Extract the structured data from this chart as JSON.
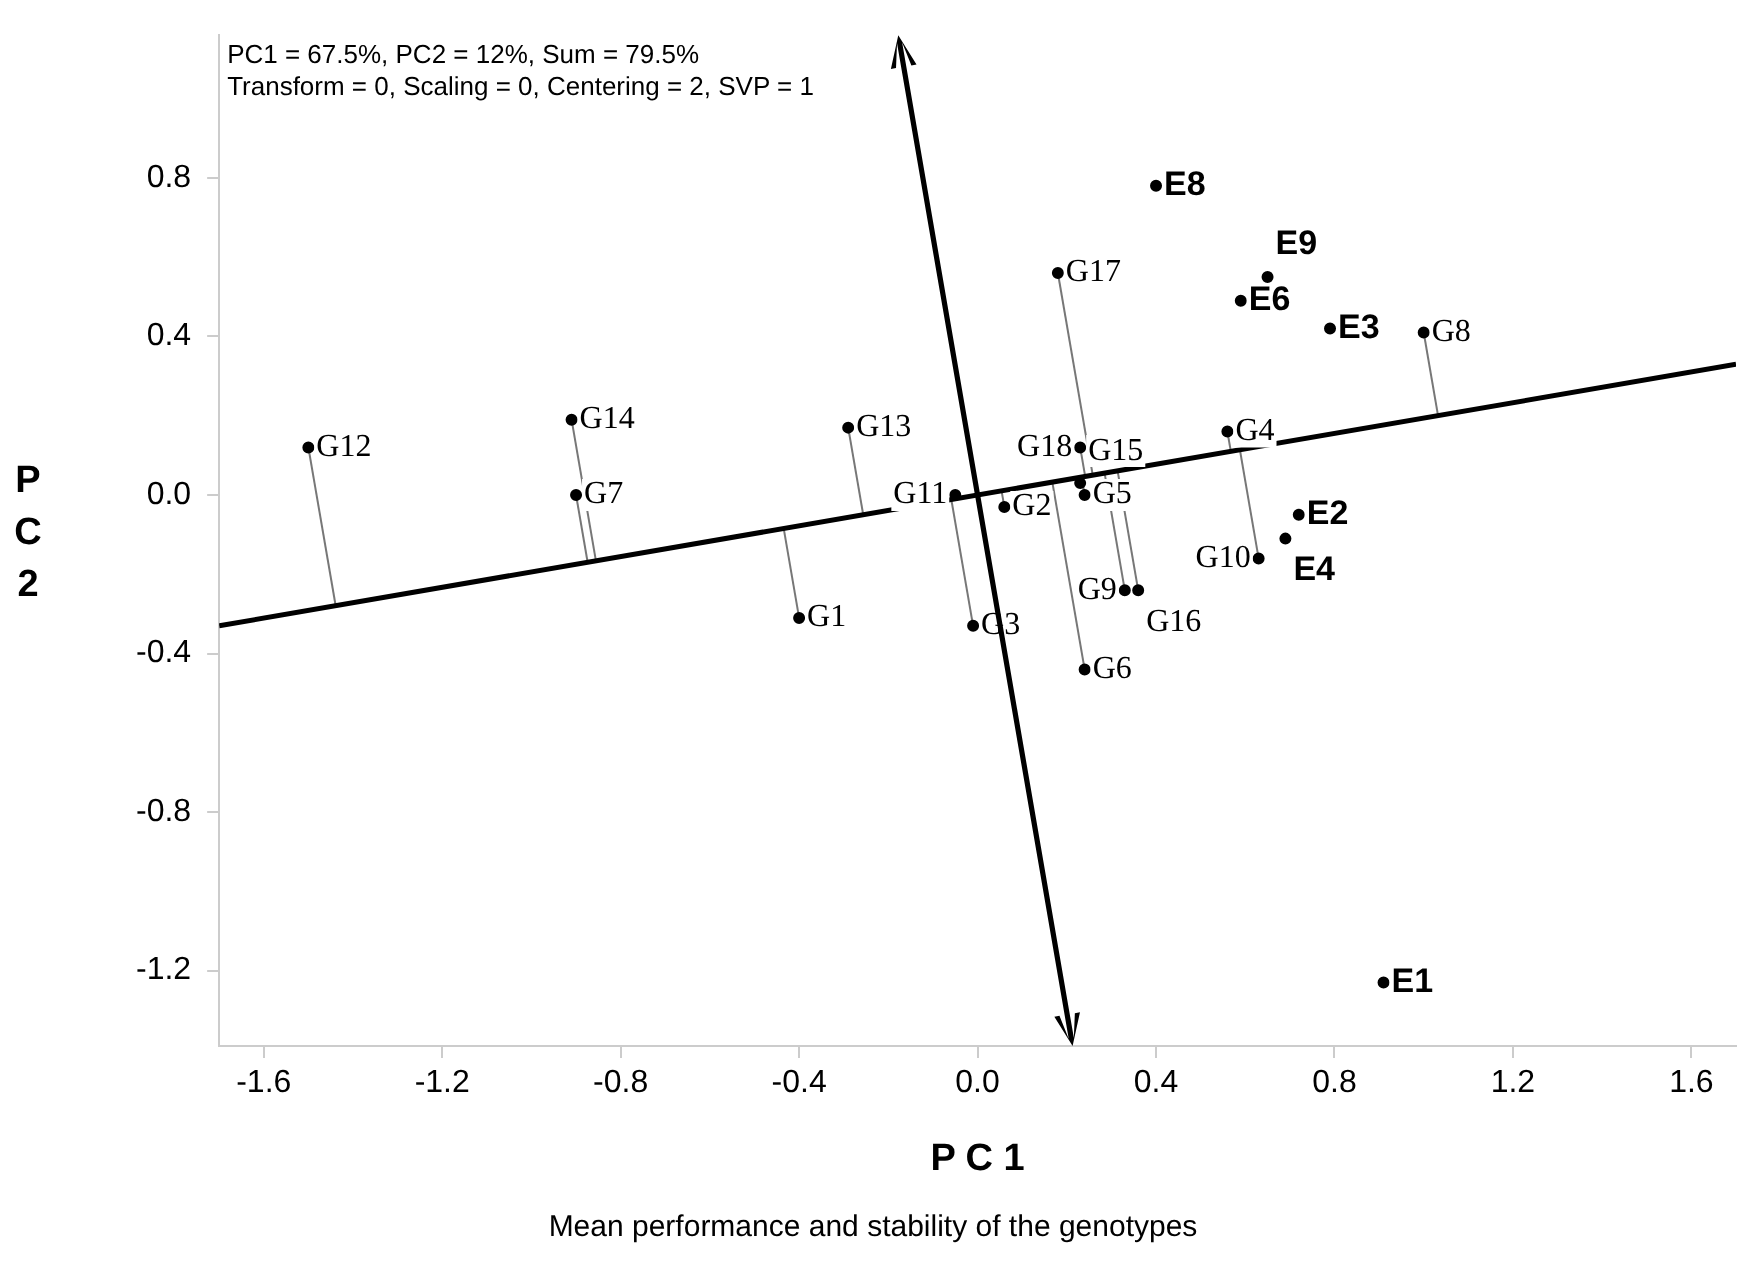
{
  "chart_data": {
    "type": "scatter",
    "xlabel": "P C 1",
    "ylabel": "P C 2",
    "annotations": [
      "PC1 = 67.5%, PC2 = 12%, Sum = 79.5%",
      "Transform = 0, Scaling = 0, Centering = 2, SVP = 1",
      "Mean performance and stability of the genotypes"
    ],
    "xlim": [
      -1.7,
      1.7
    ],
    "ylim": [
      -1.39,
      1.16
    ],
    "xticks": [
      -1.6,
      -1.2,
      -0.8,
      -0.4,
      {
        "value": 0,
        "label": "0.0"
      },
      0.4,
      0.8,
      1.2,
      1.6
    ],
    "yticks": [
      -1.2,
      -0.8,
      -0.4,
      {
        "value": 0,
        "label": "0.0"
      },
      0.4,
      0.8
    ],
    "grid": false,
    "legend": false,
    "marker": "circle",
    "series": [
      {
        "color": "#000000",
        "x": [
          -0.4,
          0.06,
          -0.01,
          0.56,
          0.24,
          0.24,
          -0.9,
          1.0,
          0.33,
          0.63,
          -0.05,
          -1.5,
          -0.29,
          -0.91,
          0.23,
          0.36,
          0.18,
          0.23
        ],
        "values": [
          -0.31,
          -0.03,
          -0.33,
          0.16,
          0.0,
          -0.44,
          0.0,
          0.41,
          -0.24,
          -0.16,
          0.0,
          0.12,
          0.17,
          0.19,
          0.03,
          -0.24,
          0.56,
          0.12
        ],
        "value_labels": [
          "G1",
          "G2",
          "G3",
          "G4",
          "G5",
          "G6",
          "G7",
          "G8",
          "G9",
          "G10",
          "G11",
          "G12",
          "G13",
          "G14",
          "G15",
          "G16",
          "G17",
          "G18"
        ]
      },
      {
        "color": "#000000",
        "x": [
          0.91,
          0.72,
          0.79,
          0.69,
          0.59,
          0.4,
          0.65
        ],
        "values": [
          -1.23,
          -0.05,
          0.42,
          -0.11,
          0.49,
          0.78,
          0.55
        ],
        "value_labels": [
          "E1",
          "E2",
          "E3",
          "E4",
          "E6",
          "E8",
          "E9"
        ]
      },
      {
        "type": "line",
        "color": "#000000",
        "marker": "none",
        "x": [
          -1.7,
          1.7
        ],
        "values": [
          -0.33,
          0.33
        ]
      }
    ]
  }
}
